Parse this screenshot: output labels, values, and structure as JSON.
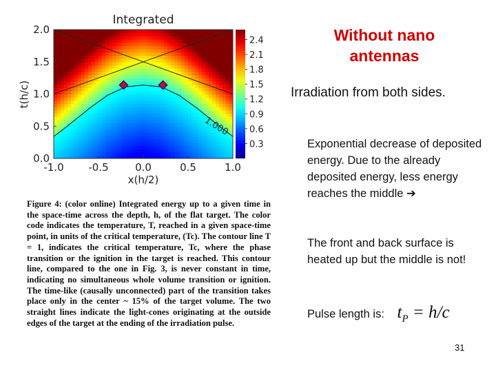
{
  "slide": {
    "title_line1": "Without nano",
    "title_line2": "antennas",
    "subtitle": "Irradiation from both sides.",
    "para1": "Exponential decrease of deposited energy. Due to the already deposited energy, less energy reaches the middle",
    "para1_arrow": "➔",
    "para2": "The front and back surface is heated up but the middle is not!",
    "pulse_label": "Pulse length is:",
    "formula": "t_P = h/c",
    "formula_main": "t",
    "formula_sub": "P",
    "formula_rest": " = h/c",
    "page_number": "31"
  },
  "figure": {
    "caption": "Figure 4: (color online) Integrated energy up to a given time in the space-time across the depth, h, of the flat target. The color code indicates the temperature, T, reached in a given space-time point, in units of the critical temperature, (Tc). The contour line T = 1, indicates the critical temperature, Tc, where the phase transition or the ignition in the target is reached. This contour line, compared to the one in Fig. 3, is never constant in time, indicating no simultaneous whole volume transition or ignition. The time-like (causally unconnected) part of the transition takes place only in the center ~ 15% of the target volume. The two straight lines indicate the light-cones originating at the outside edges of the target at the ending of the irradiation pulse."
  },
  "chart_data": {
    "type": "heatmap",
    "title": "Integrated",
    "xlabel": "x(h/2)",
    "ylabel": "t(h/c)",
    "xlim": [
      -1.0,
      1.0
    ],
    "ylim": [
      0.0,
      2.0
    ],
    "x_ticks": [
      "-1.0",
      "-0.5",
      "0.0",
      "0.5",
      "1.0"
    ],
    "x_tick_values": [
      -1.0,
      -0.5,
      0.0,
      0.5,
      1.0
    ],
    "y_ticks": [
      "0.0",
      "0.5",
      "1.0",
      "1.5",
      "2.0"
    ],
    "y_tick_values": [
      0.0,
      0.5,
      1.0,
      1.5,
      2.0
    ],
    "colorbar_ticks": [
      "2.4",
      "2.1",
      "1.8",
      "1.5",
      "1.2",
      "0.9",
      "0.6",
      "0.3"
    ],
    "colorbar_values": [
      2.4,
      2.1,
      1.8,
      1.5,
      1.2,
      0.9,
      0.6,
      0.3
    ],
    "colorbar_range": [
      0.0,
      2.6
    ],
    "colormap": [
      "#00008f",
      "#0000ff",
      "#0080ff",
      "#00ffff",
      "#80ff80",
      "#ffff00",
      "#ff8000",
      "#ff0000",
      "#800000"
    ],
    "contour": {
      "label": "1.000",
      "value": 1.0,
      "points": [
        [
          -1.0,
          0.34
        ],
        [
          -0.85,
          0.5
        ],
        [
          -0.6,
          0.78
        ],
        [
          -0.4,
          0.98
        ],
        [
          -0.2,
          1.11
        ],
        [
          0.0,
          1.14
        ],
        [
          0.2,
          1.11
        ],
        [
          0.4,
          0.98
        ],
        [
          0.6,
          0.78
        ],
        [
          0.85,
          0.5
        ],
        [
          1.0,
          0.34
        ]
      ]
    },
    "light_cones": [
      {
        "from": [
          -1.0,
          1.0
        ],
        "to": [
          1.0,
          2.0
        ]
      },
      {
        "from": [
          1.0,
          1.0
        ],
        "to": [
          -1.0,
          2.0
        ]
      }
    ],
    "markers": [
      {
        "x": -0.22,
        "y": 1.14,
        "color": "#d01010"
      },
      {
        "x": 0.22,
        "y": 1.14,
        "color": "#d01010"
      }
    ]
  }
}
